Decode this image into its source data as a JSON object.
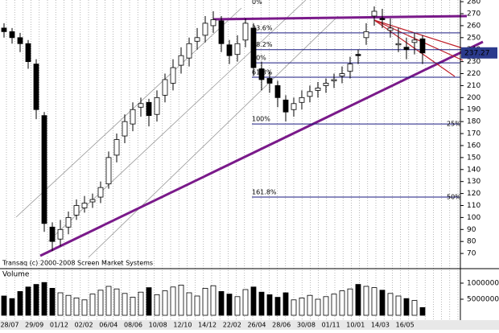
{
  "chart_data": {
    "type": "candlestick",
    "open": [
      258,
      255,
      250,
      245,
      228,
      185,
      92,
      82,
      92,
      102,
      108,
      113,
      117,
      128,
      152,
      168,
      178,
      192,
      196,
      186,
      202,
      212,
      227,
      233,
      247,
      252,
      260,
      264,
      244,
      236,
      248,
      258,
      224,
      216,
      210,
      198,
      190,
      196,
      201,
      206,
      210,
      214,
      218,
      222,
      236,
      250,
      268,
      266,
      256,
      244,
      242,
      246,
      249
    ],
    "high": [
      262,
      258,
      254,
      248,
      232,
      188,
      96,
      98,
      105,
      115,
      118,
      120,
      130,
      155,
      170,
      186,
      196,
      200,
      199,
      206,
      220,
      232,
      242,
      250,
      258,
      268,
      272,
      268,
      248,
      252,
      266,
      262,
      230,
      222,
      214,
      202,
      200,
      206,
      210,
      213,
      216,
      220,
      226,
      234,
      240,
      262,
      276,
      274,
      266,
      258,
      250,
      254,
      252
    ],
    "low": [
      250,
      245,
      238,
      224,
      182,
      88,
      72,
      76,
      86,
      98,
      104,
      108,
      112,
      124,
      146,
      162,
      172,
      184,
      176,
      180,
      196,
      206,
      220,
      226,
      240,
      246,
      254,
      238,
      228,
      230,
      242,
      218,
      206,
      204,
      192,
      180,
      184,
      190,
      196,
      200,
      204,
      208,
      212,
      216,
      228,
      244,
      260,
      258,
      250,
      238,
      232,
      236,
      228
    ],
    "close": [
      255,
      250,
      245,
      230,
      190,
      95,
      80,
      90,
      100,
      110,
      112,
      115,
      125,
      150,
      165,
      180,
      190,
      195,
      185,
      200,
      215,
      225,
      235,
      245,
      250,
      262,
      265,
      245,
      235,
      245,
      262,
      225,
      215,
      212,
      200,
      188,
      195,
      200,
      205,
      208,
      212,
      215,
      220,
      228,
      235,
      255,
      272,
      265,
      258,
      245,
      240,
      248,
      237.27
    ],
    "volume": [
      6000000,
      5200000,
      7400000,
      8800000,
      9600000,
      10200000,
      8400000,
      7000000,
      6200000,
      5400000,
      4800000,
      6600000,
      7800000,
      9000000,
      8200000,
      6800000,
      5600000,
      7200000,
      8600000,
      6400000,
      7600000,
      8800000,
      9400000,
      7000000,
      6000000,
      8400000,
      9200000,
      7400000,
      6600000,
      5800000,
      8000000,
      8800000,
      7200000,
      6400000,
      5600000,
      7000000,
      4800000,
      5400000,
      6200000,
      5000000,
      5800000,
      6600000,
      7600000,
      8200000,
      9600000,
      9000000,
      8600000,
      7800000,
      6800000,
      6000000,
      5200000,
      4600000,
      2400000
    ],
    "ylim": [
      58,
      281.4
    ],
    "yticks": [
      70,
      80,
      90,
      100,
      110,
      120,
      130,
      140,
      150,
      160,
      170,
      180,
      190,
      200,
      210,
      220,
      230,
      240,
      250,
      260,
      270,
      280
    ],
    "vlim": [
      0,
      14000000
    ],
    "vticks": [
      10000000,
      5000000
    ],
    "volume_title": "Volume",
    "copyright": "Transaq (c) 2000-2008 Screen Market Systems",
    "date_labels": [
      "28/07",
      "29/09",
      "01/12",
      "02/02",
      "06/04",
      "08/06",
      "10/08",
      "12/10",
      "14/12",
      "22/02",
      "26/04",
      "28/06",
      "30/08",
      "01/11",
      "10/01",
      "14/03",
      "16/05"
    ],
    "fib_levels": [
      {
        "label": "0%",
        "value": 277
      },
      {
        "label": "23.6%",
        "value": 254
      },
      {
        "label": "38.2%",
        "value": 240
      },
      {
        "label": "50%",
        "value": 229
      },
      {
        "label": "61.8%",
        "value": 217
      },
      {
        "label": "100%",
        "value": 178
      },
      {
        "label": "161.8%",
        "value": 117
      }
    ],
    "extension_labels": [
      {
        "label": "25%",
        "value": 178
      },
      {
        "label": "50%",
        "value": 117
      }
    ],
    "up_color": "#ffffff",
    "down_color": "#000000",
    "fib_color": "#1a1a80",
    "trend_color": "#7a1a8a"
  }
}
